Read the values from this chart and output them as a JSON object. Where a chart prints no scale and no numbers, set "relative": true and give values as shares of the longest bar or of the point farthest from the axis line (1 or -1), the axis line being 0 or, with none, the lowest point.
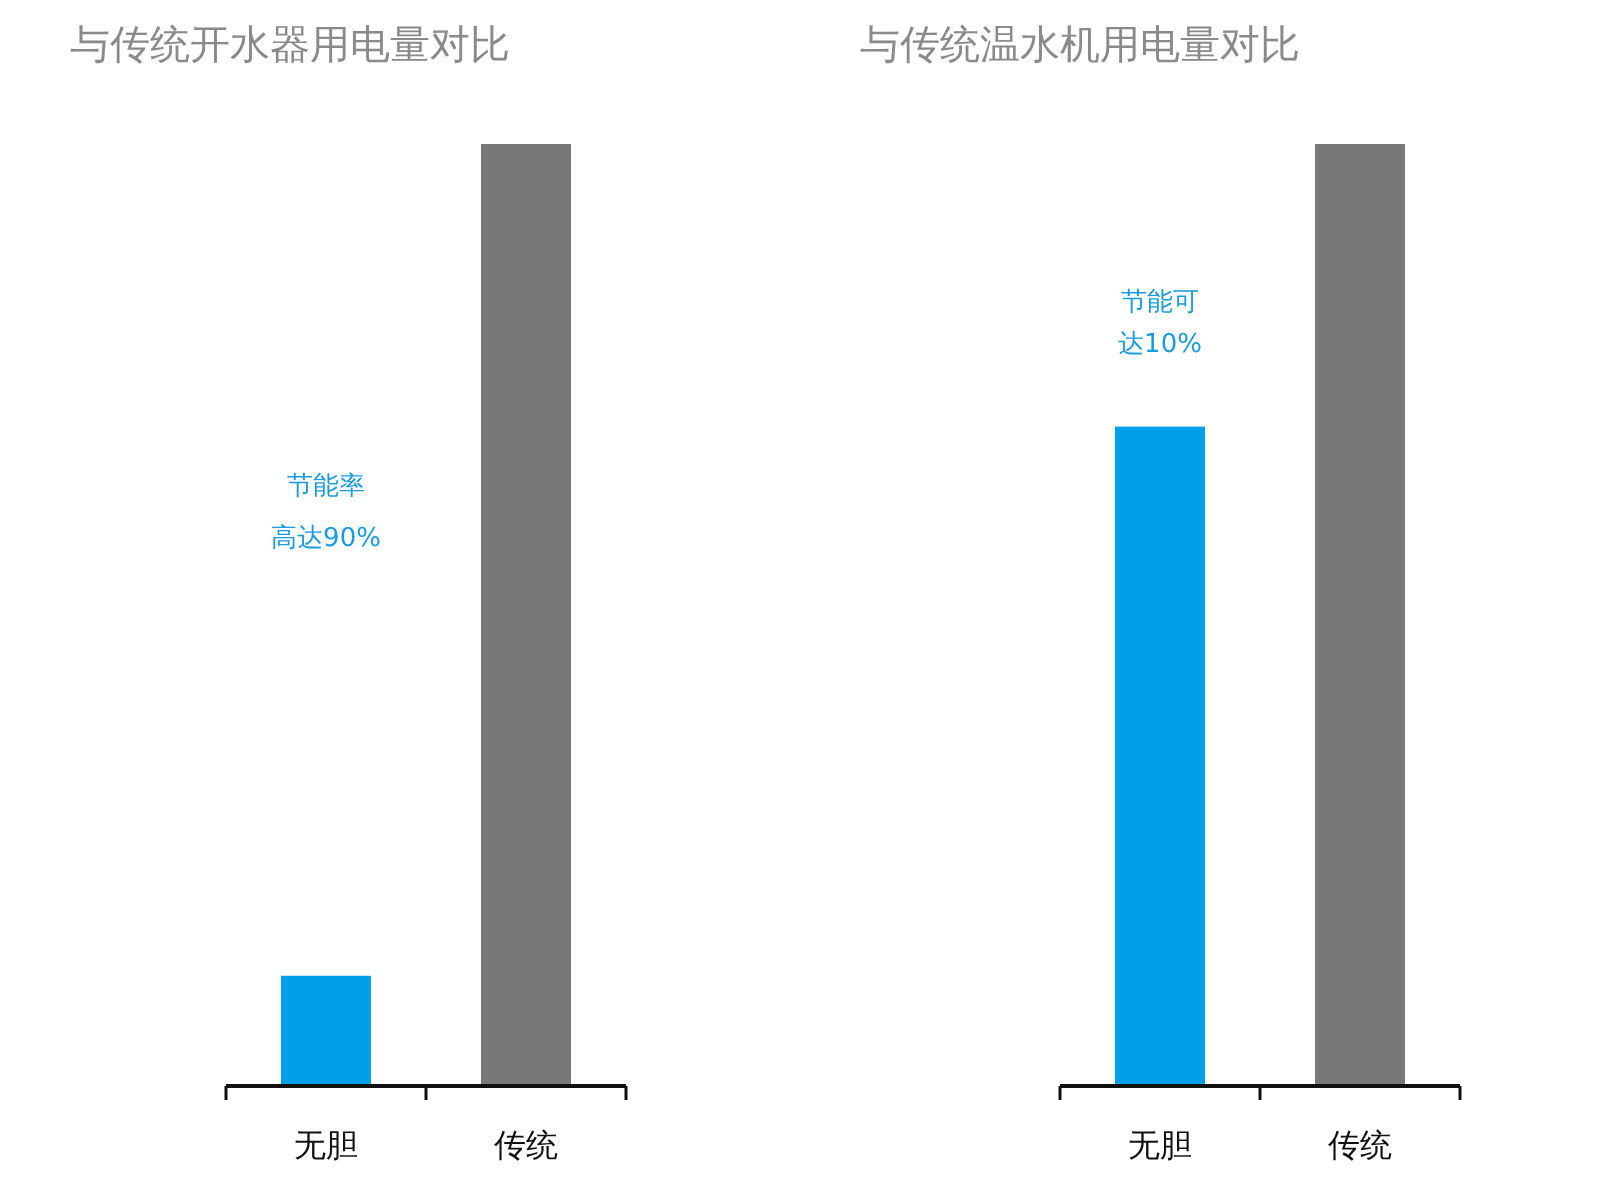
{
  "chart_data": [
    {
      "type": "bar",
      "title": "与传统开水器用电量对比",
      "categories": [
        "无胆",
        "传统"
      ],
      "values": [
        0.117,
        1
      ],
      "colors": [
        "#00a0e9",
        "#797777"
      ],
      "relative": true,
      "annotations": [
        "节能率",
        "高达90%"
      ]
    },
    {
      "type": "bar",
      "title": "与传统温水机用电量对比",
      "categories": [
        "无胆",
        "传统"
      ],
      "values": [
        0.7,
        1
      ],
      "colors": [
        "#00a0e9",
        "#797777"
      ],
      "relative": true,
      "annotations": [
        "节能可",
        "达10%"
      ]
    }
  ]
}
